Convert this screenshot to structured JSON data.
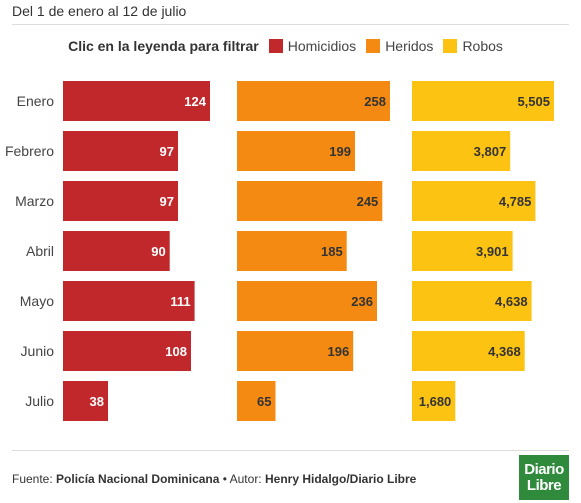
{
  "subtitle": "Del 1 de enero al 12 de julio",
  "legend": {
    "title": "Clic en la leyenda para filtrar",
    "items": [
      {
        "label": "Homicidios",
        "color": "#c0282b"
      },
      {
        "label": "Heridos",
        "color": "#f58a12"
      },
      {
        "label": "Robos",
        "color": "#fcc312"
      }
    ]
  },
  "chart_data": {
    "type": "bar",
    "orientation": "horizontal",
    "layout": "small-multiples",
    "categories": [
      "Enero",
      "Febrero",
      "Marzo",
      "Abril",
      "Mayo",
      "Junio",
      "Julio"
    ],
    "series": [
      {
        "name": "Homicidios",
        "color": "#c0282b",
        "values": [
          124,
          97,
          97,
          90,
          111,
          108,
          38
        ],
        "labels": [
          "124",
          "97",
          "97",
          "90",
          "111",
          "108",
          "38"
        ]
      },
      {
        "name": "Heridos",
        "color": "#f58a12",
        "values": [
          258,
          199,
          245,
          185,
          236,
          196,
          65
        ],
        "labels": [
          "258",
          "199",
          "245",
          "185",
          "236",
          "196",
          "65"
        ]
      },
      {
        "name": "Robos",
        "color": "#fcc312",
        "values": [
          5505,
          3807,
          4785,
          3901,
          4638,
          4368,
          1680
        ],
        "labels": [
          "5,505",
          "3,807",
          "4,785",
          "3,901",
          "4,638",
          "4,368",
          "1,680"
        ]
      }
    ]
  },
  "footer": {
    "source_label": "Fuente: ",
    "source": "Policía Nacional Dominicana",
    "separator": " • Autor: ",
    "author": "Henry Hidalgo/Diario Libre"
  },
  "logo": {
    "line1": "Diario",
    "line2": "Libre"
  }
}
